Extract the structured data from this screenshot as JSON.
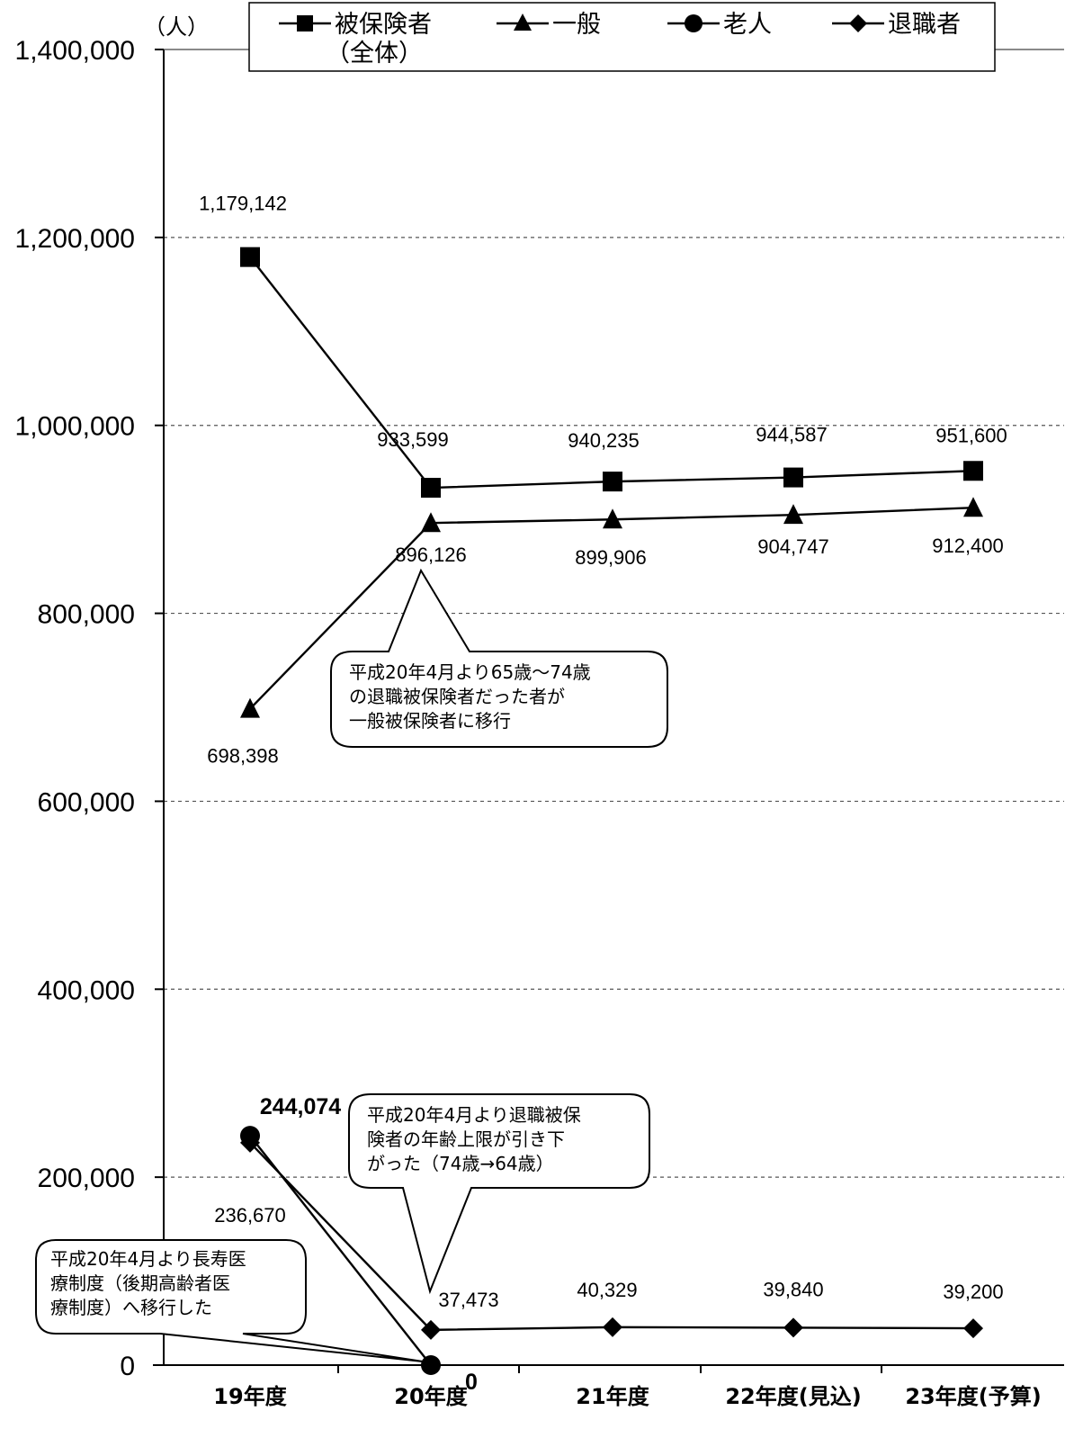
{
  "chart_data": {
    "type": "line",
    "unit_label": "（人）",
    "categories": [
      "19年度",
      "20年度",
      "21年度",
      "22年度(見込)",
      "23年度(予算)"
    ],
    "ylim": [
      0,
      1400000
    ],
    "yticks": [
      "0",
      "200,000",
      "400,000",
      "600,000",
      "800,000",
      "1,000,000",
      "1,200,000",
      "1,400,000"
    ],
    "ytick_values": [
      0,
      200000,
      400000,
      600000,
      800000,
      1000000,
      1200000,
      1400000
    ],
    "grid": true,
    "legend_position": "top",
    "series": [
      {
        "name": "被保険者（全体）",
        "marker": "square",
        "values": [
          1179142,
          933599,
          940235,
          944587,
          951600
        ],
        "labels": [
          "1,179,142",
          "933,599",
          "940,235",
          "944,587",
          "951,600"
        ]
      },
      {
        "name": "一般",
        "marker": "triangle",
        "values": [
          698398,
          896126,
          899906,
          904747,
          912400
        ],
        "labels": [
          "698,398",
          "896,126",
          "899,906",
          "904,747",
          "912,400"
        ]
      },
      {
        "name": "老人",
        "marker": "circle",
        "values": [
          244074,
          0,
          null,
          null,
          null
        ],
        "labels": [
          "244,074",
          "0",
          null,
          null,
          null
        ]
      },
      {
        "name": "退職者",
        "marker": "diamond",
        "values": [
          236670,
          37473,
          40329,
          39840,
          39200
        ],
        "labels": [
          "236,670",
          "37,473",
          "40,329",
          "39,840",
          "39,200"
        ]
      }
    ],
    "legend": {
      "s1_line1": "被保険者",
      "s1_line2": "（全体）",
      "s2": "一般",
      "s3": "老人",
      "s4": "退職者"
    },
    "annotations": [
      {
        "lines": [
          "平成20年4月より65歳～74歳",
          "の退職被保険者だった者が",
          "一般被保険者に移行"
        ]
      },
      {
        "lines": [
          "平成20年4月より退職被保",
          "険者の年齢上限が引き下",
          "がった（74歳→64歳）"
        ]
      },
      {
        "lines": [
          "平成20年4月より長寿医",
          "療制度（後期高齢者医",
          "療制度）へ移行した"
        ]
      }
    ]
  }
}
